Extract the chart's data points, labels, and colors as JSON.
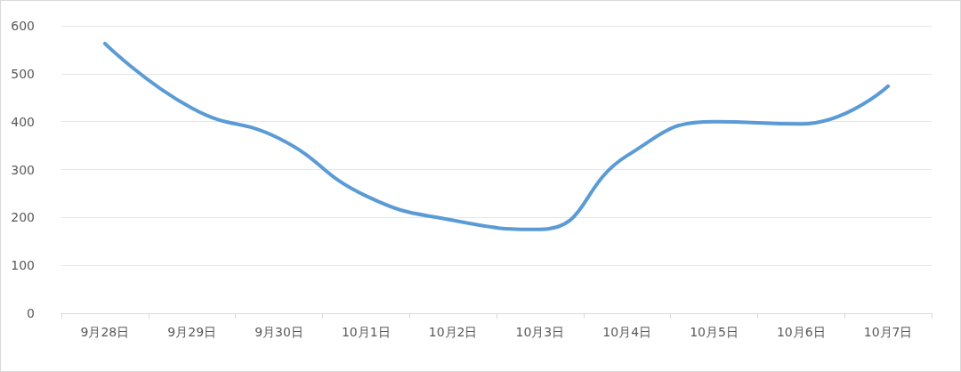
{
  "chart_data": {
    "type": "line",
    "categories": [
      "9月28日",
      "9月29日",
      "9月30日",
      "10月1日",
      "10月2日",
      "10月3日",
      "10月4日",
      "10月5日",
      "10月6日",
      "10月7日"
    ],
    "series": [
      {
        "color": "#5b9bd5",
        "values": [
          563,
          428,
          365,
          245,
          194,
          175,
          329,
          400,
          395,
          474
        ]
      }
    ],
    "ylim": [
      0,
      600
    ],
    "yticks": [
      0,
      100,
      200,
      300,
      400,
      500,
      600
    ],
    "grid": "y",
    "marker": "none",
    "line_style": "solid"
  }
}
